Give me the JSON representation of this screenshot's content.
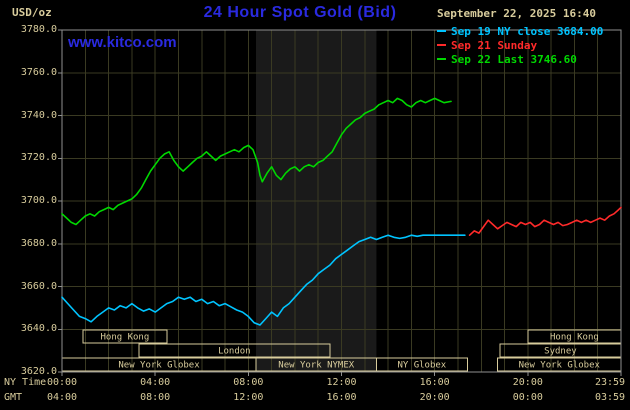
{
  "header": {
    "unit_label": "USD/oz",
    "title": "24 Hour Spot Gold (Bid)",
    "datetime": "September 22, 2025 16:40",
    "watermark": "www.kitco.com"
  },
  "legend": {
    "items": [
      {
        "label": "Sep 19 NY close 3684.00",
        "color": "#00c4ff"
      },
      {
        "label": "Sep 21 Sunday",
        "color": "#ff2a2a"
      },
      {
        "label": "Sep 22 Last 3746.60",
        "color": "#00d800"
      }
    ]
  },
  "axes": {
    "ny_time_label": "NY Time",
    "gmt_label": "GMT",
    "x_ticks": [
      {
        "h": 0,
        "ny": "00:00",
        "gmt": "04:00"
      },
      {
        "h": 4,
        "ny": "04:00",
        "gmt": "08:00"
      },
      {
        "h": 8,
        "ny": "08:00",
        "gmt": "12:00"
      },
      {
        "h": 12,
        "ny": "12:00",
        "gmt": "16:00"
      },
      {
        "h": 16,
        "ny": "16:00",
        "gmt": "20:00"
      },
      {
        "h": 20,
        "ny": "20:00",
        "gmt": "00:00"
      },
      {
        "h": 24,
        "ny": "23:59",
        "gmt": "03:59"
      }
    ],
    "y_ticks": [
      {
        "v": 3780,
        "label": "3780.0"
      },
      {
        "v": 3760,
        "label": "3760.0"
      },
      {
        "v": 3740,
        "label": "3740.0"
      },
      {
        "v": 3720,
        "label": "3720.0"
      },
      {
        "v": 3700,
        "label": "3700.0"
      },
      {
        "v": 3680,
        "label": "3680.0"
      },
      {
        "v": 3660,
        "label": "3660.0"
      },
      {
        "v": 3640,
        "label": "3640.0"
      },
      {
        "v": 3620,
        "label": "3620.0"
      }
    ]
  },
  "chart_data": {
    "type": "line",
    "title": "24 Hour Spot Gold (Bid)",
    "xlabel": "NY Time / GMT (hours)",
    "ylabel": "USD/oz",
    "xlim": [
      0,
      24
    ],
    "ylim": [
      3620,
      3780
    ],
    "x_grid_step_hours": 1,
    "y_grid_step": 20,
    "nymex_band_hours": [
      8.33,
      13.5
    ],
    "series": [
      {
        "name": "Sep 19 NY close",
        "color": "#00c4ff",
        "close_value": 3684.0,
        "points": [
          [
            0,
            3655
          ],
          [
            0.25,
            3652
          ],
          [
            0.5,
            3649
          ],
          [
            0.75,
            3646
          ],
          [
            1,
            3645
          ],
          [
            1.25,
            3643.5
          ],
          [
            1.5,
            3646
          ],
          [
            1.75,
            3648
          ],
          [
            2,
            3650
          ],
          [
            2.25,
            3649
          ],
          [
            2.5,
            3651
          ],
          [
            2.75,
            3650
          ],
          [
            3,
            3652
          ],
          [
            3.25,
            3650
          ],
          [
            3.5,
            3648.5
          ],
          [
            3.75,
            3649.5
          ],
          [
            4,
            3648
          ],
          [
            4.25,
            3650
          ],
          [
            4.5,
            3652
          ],
          [
            4.75,
            3653
          ],
          [
            5,
            3655
          ],
          [
            5.25,
            3654
          ],
          [
            5.5,
            3655
          ],
          [
            5.75,
            3653
          ],
          [
            6,
            3654
          ],
          [
            6.25,
            3652
          ],
          [
            6.5,
            3653
          ],
          [
            6.75,
            3651
          ],
          [
            7,
            3652
          ],
          [
            7.25,
            3650.5
          ],
          [
            7.5,
            3649
          ],
          [
            7.75,
            3648
          ],
          [
            8,
            3646
          ],
          [
            8.25,
            3643
          ],
          [
            8.5,
            3642
          ],
          [
            8.75,
            3645
          ],
          [
            9,
            3648
          ],
          [
            9.25,
            3646
          ],
          [
            9.5,
            3650
          ],
          [
            9.75,
            3652
          ],
          [
            10,
            3655
          ],
          [
            10.25,
            3658
          ],
          [
            10.5,
            3661
          ],
          [
            10.75,
            3663
          ],
          [
            11,
            3666
          ],
          [
            11.25,
            3668
          ],
          [
            11.5,
            3670
          ],
          [
            11.75,
            3673
          ],
          [
            12,
            3675
          ],
          [
            12.25,
            3677
          ],
          [
            12.5,
            3679
          ],
          [
            12.75,
            3681
          ],
          [
            13,
            3682
          ],
          [
            13.25,
            3683
          ],
          [
            13.5,
            3682
          ],
          [
            13.75,
            3683
          ],
          [
            14,
            3684
          ],
          [
            14.25,
            3683
          ],
          [
            14.5,
            3682.5
          ],
          [
            14.75,
            3683
          ],
          [
            15,
            3684
          ],
          [
            15.25,
            3683.5
          ],
          [
            15.5,
            3684
          ],
          [
            16,
            3684
          ],
          [
            16.5,
            3684
          ],
          [
            17,
            3684
          ],
          [
            17.3,
            3684
          ]
        ]
      },
      {
        "name": "Sep 21 Sunday",
        "color": "#ff2a2a",
        "points": [
          [
            17.5,
            3684
          ],
          [
            17.7,
            3686
          ],
          [
            17.9,
            3685
          ],
          [
            18.1,
            3688
          ],
          [
            18.3,
            3691
          ],
          [
            18.5,
            3689
          ],
          [
            18.7,
            3687
          ],
          [
            18.9,
            3688.5
          ],
          [
            19.1,
            3690
          ],
          [
            19.3,
            3689
          ],
          [
            19.5,
            3688
          ],
          [
            19.7,
            3690
          ],
          [
            19.9,
            3689
          ],
          [
            20.1,
            3690
          ],
          [
            20.3,
            3688
          ],
          [
            20.5,
            3689
          ],
          [
            20.7,
            3691
          ],
          [
            20.9,
            3690
          ],
          [
            21.1,
            3689
          ],
          [
            21.3,
            3690
          ],
          [
            21.5,
            3688.5
          ],
          [
            21.7,
            3689
          ],
          [
            21.9,
            3690
          ],
          [
            22.1,
            3691
          ],
          [
            22.3,
            3690
          ],
          [
            22.5,
            3691
          ],
          [
            22.7,
            3690
          ],
          [
            22.9,
            3691
          ],
          [
            23.1,
            3692
          ],
          [
            23.3,
            3691
          ],
          [
            23.5,
            3693
          ],
          [
            23.7,
            3694
          ],
          [
            23.9,
            3696
          ],
          [
            24,
            3697
          ]
        ]
      },
      {
        "name": "Sep 22 Last",
        "color": "#00d800",
        "last_value": 3746.6,
        "points": [
          [
            0,
            3694
          ],
          [
            0.2,
            3692
          ],
          [
            0.4,
            3690
          ],
          [
            0.6,
            3689
          ],
          [
            0.8,
            3691
          ],
          [
            1,
            3693
          ],
          [
            1.2,
            3694
          ],
          [
            1.4,
            3693
          ],
          [
            1.6,
            3695
          ],
          [
            1.8,
            3696
          ],
          [
            2,
            3697
          ],
          [
            2.2,
            3696
          ],
          [
            2.4,
            3698
          ],
          [
            2.6,
            3699
          ],
          [
            2.8,
            3700
          ],
          [
            3,
            3701
          ],
          [
            3.2,
            3703
          ],
          [
            3.4,
            3706
          ],
          [
            3.6,
            3710
          ],
          [
            3.8,
            3714
          ],
          [
            4,
            3717
          ],
          [
            4.2,
            3720
          ],
          [
            4.4,
            3722
          ],
          [
            4.6,
            3723
          ],
          [
            4.8,
            3719
          ],
          [
            5,
            3716
          ],
          [
            5.2,
            3714
          ],
          [
            5.4,
            3716
          ],
          [
            5.6,
            3718
          ],
          [
            5.8,
            3720
          ],
          [
            6,
            3721
          ],
          [
            6.2,
            3723
          ],
          [
            6.4,
            3721
          ],
          [
            6.6,
            3719
          ],
          [
            6.8,
            3721
          ],
          [
            7,
            3722
          ],
          [
            7.2,
            3723
          ],
          [
            7.4,
            3724
          ],
          [
            7.6,
            3723
          ],
          [
            7.8,
            3725
          ],
          [
            8,
            3726
          ],
          [
            8.2,
            3724
          ],
          [
            8.4,
            3718
          ],
          [
            8.5,
            3712
          ],
          [
            8.6,
            3709
          ],
          [
            8.8,
            3713
          ],
          [
            9,
            3716
          ],
          [
            9.2,
            3712
          ],
          [
            9.4,
            3710
          ],
          [
            9.6,
            3713
          ],
          [
            9.8,
            3715
          ],
          [
            10,
            3716
          ],
          [
            10.2,
            3714
          ],
          [
            10.4,
            3716
          ],
          [
            10.6,
            3717
          ],
          [
            10.8,
            3716
          ],
          [
            11,
            3718
          ],
          [
            11.2,
            3719
          ],
          [
            11.4,
            3721
          ],
          [
            11.6,
            3723
          ],
          [
            11.8,
            3727
          ],
          [
            12,
            3731
          ],
          [
            12.2,
            3734
          ],
          [
            12.4,
            3736
          ],
          [
            12.6,
            3738
          ],
          [
            12.8,
            3739
          ],
          [
            13,
            3741
          ],
          [
            13.2,
            3742
          ],
          [
            13.4,
            3743
          ],
          [
            13.6,
            3745
          ],
          [
            13.8,
            3746
          ],
          [
            14,
            3747
          ],
          [
            14.2,
            3746
          ],
          [
            14.4,
            3748
          ],
          [
            14.6,
            3747
          ],
          [
            14.8,
            3745
          ],
          [
            15,
            3744
          ],
          [
            15.2,
            3746
          ],
          [
            15.4,
            3747
          ],
          [
            15.6,
            3746
          ],
          [
            15.8,
            3747
          ],
          [
            16,
            3748
          ],
          [
            16.2,
            3747
          ],
          [
            16.4,
            3746
          ],
          [
            16.7,
            3746.6
          ]
        ]
      }
    ],
    "sessions": [
      {
        "row": 0,
        "start": 0.9,
        "end": 4.5,
        "label": "Hong Kong"
      },
      {
        "row": 0,
        "start": 20.0,
        "end": 24,
        "label": "Hong Kong"
      },
      {
        "row": 1,
        "start": 3.3,
        "end": 11.5,
        "label": "London"
      },
      {
        "row": 1,
        "start": 18.8,
        "end": 24,
        "label": "Sydney"
      },
      {
        "row": 2,
        "start": 0,
        "end": 8.33,
        "label": "New York Globex"
      },
      {
        "row": 2,
        "start": 8.33,
        "end": 13.5,
        "label": "New York NYMEX"
      },
      {
        "row": 2,
        "start": 13.5,
        "end": 17.4,
        "label": "NY Globex"
      },
      {
        "row": 2,
        "start": 18.7,
        "end": 24,
        "label": "New York Globex"
      }
    ]
  },
  "colors": {
    "background": "#000000",
    "band": "#1a1a1a",
    "grid": "#3a3a22",
    "frame": "#8f8f8f",
    "tan": "#d8cc9c",
    "blue": "#2a2ae0",
    "cyan": "#00c4ff",
    "red": "#ff2a2a",
    "green": "#00d800"
  }
}
